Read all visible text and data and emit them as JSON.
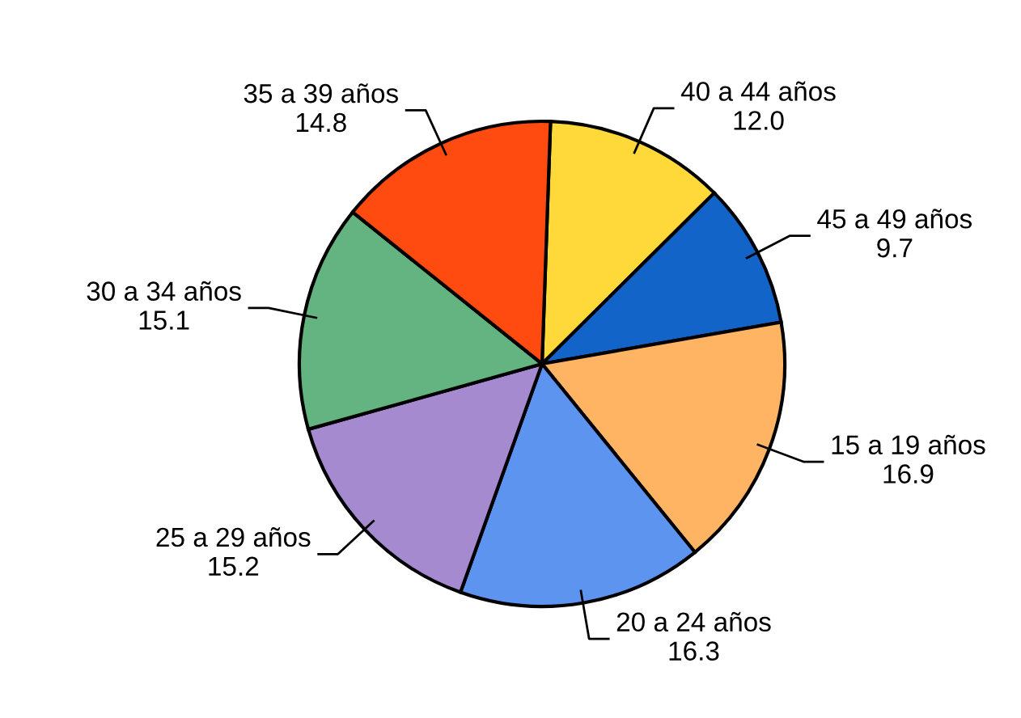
{
  "chart_data": {
    "type": "pie",
    "categories": [
      "40 a 44 años",
      "45 a 49 años",
      "15 a 19 años",
      "20 a 24 años",
      "25 a 29 años",
      "30 a 34 años",
      "35 a 39 años"
    ],
    "values": [
      12.0,
      9.7,
      16.9,
      16.3,
      15.2,
      15.1,
      14.8
    ],
    "colors": [
      "#ffd83a",
      "#1264c8",
      "#ffb464",
      "#5c94f0",
      "#a58ad0",
      "#64b482",
      "#ff4a10"
    ],
    "value_labels": [
      "12.0",
      "9.7",
      "16.9",
      "16.3",
      "15.2",
      "15.1",
      "14.8"
    ]
  }
}
